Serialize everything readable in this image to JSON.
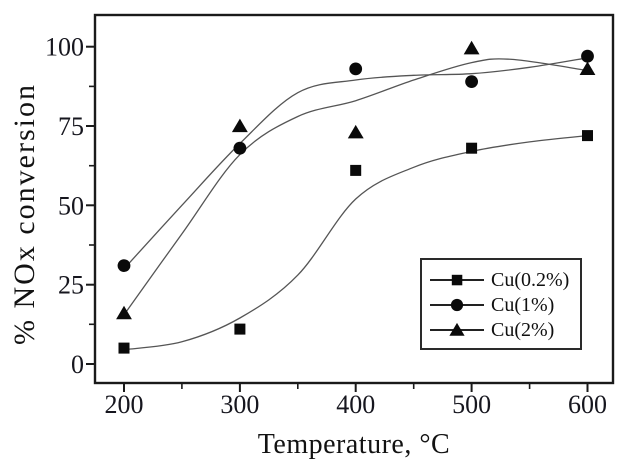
{
  "figure_name": "NOx conversion vs temperature over Cu catalysts",
  "colors": {
    "background": "#ffffff",
    "ink": "#111111",
    "frame": "#1a1a1a",
    "curve": "#555555",
    "marker": "#0a0a0a",
    "tick_text": "#16161e"
  },
  "chart_data": {
    "type": "scatter",
    "line_fit": "smoothed spline through points",
    "title": "",
    "xlabel": "Temperature, °C",
    "ylabel": "% NOx conversion",
    "x": [
      200,
      300,
      400,
      500,
      600
    ],
    "xlim": [
      175,
      622
    ],
    "ylim": [
      -6,
      110
    ],
    "x_major_ticks": [
      200,
      300,
      400,
      500,
      600
    ],
    "x_minor_ticks": [
      250,
      350,
      450,
      550
    ],
    "y_major_ticks": [
      0,
      25,
      50,
      75,
      100
    ],
    "y_minor_ticks": [
      12.5,
      37.5,
      62.5,
      87.5
    ],
    "grid": false,
    "legend": {
      "position": "inside bottom-right",
      "border": true
    },
    "series": [
      {
        "name": "Cu(0.2%)",
        "marker": "square",
        "values": [
          5,
          11,
          61,
          68,
          72
        ],
        "trend": [
          [
            200,
            4.5
          ],
          [
            250,
            7
          ],
          [
            300,
            14.5
          ],
          [
            350,
            28
          ],
          [
            400,
            52
          ],
          [
            450,
            62
          ],
          [
            500,
            67
          ],
          [
            550,
            70
          ],
          [
            600,
            72
          ]
        ]
      },
      {
        "name": "Cu(1%)",
        "marker": "circle",
        "values": [
          31,
          68,
          93,
          89,
          97
        ],
        "trend": [
          [
            200,
            30
          ],
          [
            250,
            50
          ],
          [
            300,
            69.5
          ],
          [
            350,
            85.5
          ],
          [
            400,
            89.5
          ],
          [
            450,
            91
          ],
          [
            500,
            91.5
          ],
          [
            550,
            93.5
          ],
          [
            600,
            96.5
          ]
        ]
      },
      {
        "name": "Cu(2%)",
        "marker": "triangle",
        "values": [
          16,
          75,
          73,
          99.5,
          93
        ],
        "trend": [
          [
            200,
            15.5
          ],
          [
            250,
            41
          ],
          [
            300,
            66
          ],
          [
            350,
            78
          ],
          [
            400,
            83
          ],
          [
            450,
            89.5
          ],
          [
            500,
            95
          ],
          [
            535,
            96
          ],
          [
            600,
            92.5
          ]
        ]
      }
    ]
  }
}
